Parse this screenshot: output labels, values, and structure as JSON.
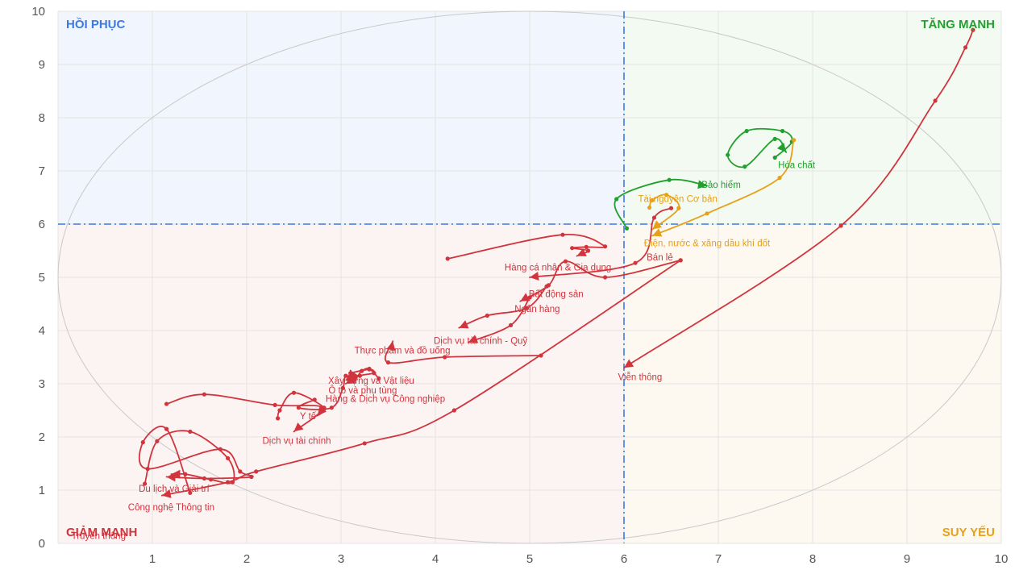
{
  "chart_data": {
    "type": "scatter",
    "title": "",
    "xlim": [
      0,
      10
    ],
    "ylim": [
      0,
      10
    ],
    "x_ticks": [
      "1",
      "2",
      "3",
      "4",
      "5",
      "6",
      "7",
      "8",
      "9",
      "10"
    ],
    "y_ticks": [
      "0",
      "1",
      "2",
      "3",
      "4",
      "5",
      "6",
      "7",
      "8",
      "9",
      "10"
    ],
    "divider_x": 6,
    "divider_y": 6,
    "grid": true,
    "quadrants": [
      {
        "label": "HỒI PHỤC",
        "color": "#3b7ae0",
        "bg": "#f1f5fd",
        "position": "top-left"
      },
      {
        "label": "TĂNG MẠNH",
        "color": "#22a02f",
        "bg": "#f3faf1",
        "position": "top-right"
      },
      {
        "label": "GIẢM MẠNH",
        "color": "#d1343d",
        "bg": "#fcf3f3",
        "position": "bottom-left"
      },
      {
        "label": "SUY YẾU",
        "color": "#e6a019",
        "bg": "#fdf9f1",
        "position": "bottom-right"
      }
    ],
    "series": [
      {
        "name": "Hóa chất",
        "color": "#22a02f",
        "label_at": [
          7.83,
          7.05
        ],
        "points": [
          [
            7.6,
            7.25
          ],
          [
            7.78,
            7.55
          ],
          [
            7.68,
            7.75
          ],
          [
            7.3,
            7.75
          ],
          [
            7.1,
            7.3
          ],
          [
            7.28,
            7.08
          ],
          [
            7.6,
            7.6
          ],
          [
            7.72,
            7.35
          ]
        ]
      },
      {
        "name": "Bảo hiểm",
        "color": "#22a02f",
        "label_at": [
          7.03,
          6.68
        ],
        "points": [
          [
            6.03,
            5.92
          ],
          [
            5.92,
            6.47
          ],
          [
            6.48,
            6.83
          ],
          [
            6.88,
            6.72
          ]
        ]
      },
      {
        "name": "Tài nguyên Cơ bản",
        "color": "#e6a019",
        "label_at": [
          6.57,
          6.42
        ],
        "points": [
          [
            7.8,
            7.58
          ],
          [
            7.65,
            6.87
          ],
          [
            6.88,
            6.2
          ],
          [
            6.3,
            5.78
          ]
        ]
      },
      {
        "name": "Điện, nước & xăng dầu khí đốt",
        "color": "#e6a019",
        "label_at": [
          6.88,
          5.58
        ],
        "points": [
          [
            6.27,
            6.31
          ],
          [
            6.3,
            6.45
          ],
          [
            6.45,
            6.55
          ],
          [
            6.58,
            6.3
          ],
          [
            6.3,
            5.9
          ]
        ]
      },
      {
        "name": "Bán lẻ",
        "color": "#d1343d",
        "label_at": [
          6.38,
          5.32
        ],
        "points": [
          [
            6.5,
            6.3
          ],
          [
            6.32,
            6.12
          ],
          [
            6.12,
            5.27
          ],
          [
            5.0,
            5.0
          ]
        ]
      },
      {
        "name": "Viễn thông",
        "color": "#d1343d",
        "label_at": [
          6.17,
          3.07
        ],
        "points": [
          [
            9.7,
            9.65
          ],
          [
            9.62,
            9.32
          ],
          [
            9.3,
            8.32
          ],
          [
            8.3,
            5.97
          ],
          [
            6.0,
            3.3
          ]
        ]
      },
      {
        "name": "Hàng cá nhân & Gia dụng",
        "color": "#d1343d",
        "label_at": [
          5.3,
          5.13
        ],
        "points": [
          [
            4.13,
            5.35
          ],
          [
            5.35,
            5.8
          ],
          [
            5.8,
            5.58
          ],
          [
            5.6,
            5.57
          ],
          [
            5.45,
            5.55
          ],
          [
            5.62,
            5.5
          ],
          [
            5.5,
            5.4
          ]
        ]
      },
      {
        "name": "Bất động sản",
        "color": "#d1343d",
        "label_at": [
          5.28,
          4.63
        ],
        "points": [
          [
            6.6,
            5.32
          ],
          [
            5.8,
            5.0
          ],
          [
            5.38,
            5.3
          ],
          [
            5.2,
            4.85
          ],
          [
            4.9,
            4.55
          ]
        ]
      },
      {
        "name": "Ngân hàng",
        "color": "#d1343d",
        "label_at": [
          5.08,
          4.35
        ],
        "points": [
          [
            5.18,
            4.83
          ],
          [
            4.97,
            4.42
          ],
          [
            4.55,
            4.28
          ],
          [
            4.25,
            4.05
          ]
        ]
      },
      {
        "name": "Dịch vụ tài chính - Quỹ",
        "color": "#d1343d",
        "label_at": [
          4.48,
          3.75
        ],
        "points": [
          [
            5.0,
            4.62
          ],
          [
            4.8,
            4.1
          ],
          [
            4.35,
            3.78
          ]
        ]
      },
      {
        "name": "Thực phẩm và đồ uống",
        "color": "#d1343d",
        "label_at": [
          3.65,
          3.57
        ],
        "points": [
          [
            5.12,
            3.53
          ],
          [
            4.1,
            3.5
          ],
          [
            3.5,
            3.4
          ],
          [
            3.55,
            3.8
          ]
        ]
      },
      {
        "name": "Xây dựng và Vật liệu",
        "color": "#d1343d",
        "label_at": [
          3.32,
          3.0
        ],
        "points": [
          [
            3.4,
            3.1
          ],
          [
            3.3,
            3.28
          ],
          [
            3.22,
            3.24
          ],
          [
            3.15,
            3.1
          ],
          [
            3.1,
            3.25
          ]
        ]
      },
      {
        "name": "Ô tô và phụ tùng",
        "color": "#d1343d",
        "label_at": [
          3.23,
          2.82
        ],
        "points": [
          [
            3.1,
            3.2
          ],
          [
            3.3,
            3.27
          ],
          [
            3.35,
            3.2
          ],
          [
            3.2,
            3.15
          ],
          [
            3.05,
            3.0
          ]
        ]
      },
      {
        "name": "Hàng & Dịch vụ Công nghiệp",
        "color": "#d1343d",
        "label_at": [
          3.47,
          2.66
        ],
        "points": [
          [
            2.72,
            2.7
          ],
          [
            2.55,
            2.55
          ],
          [
            2.9,
            2.55
          ],
          [
            3.02,
            2.92
          ],
          [
            3.05,
            3.15
          ],
          [
            3.15,
            3.05
          ]
        ]
      },
      {
        "name": "Y tế",
        "color": "#d1343d",
        "label_at": [
          2.65,
          2.33
        ],
        "points": [
          [
            2.33,
            2.35
          ],
          [
            2.35,
            2.5
          ],
          [
            2.5,
            2.83
          ],
          [
            2.82,
            2.55
          ],
          [
            2.75,
            2.4
          ]
        ]
      },
      {
        "name": "Dịch vụ tài chính",
        "color": "#d1343d",
        "label_at": [
          2.53,
          1.87
        ],
        "points": [
          [
            1.15,
            2.62
          ],
          [
            1.55,
            2.8
          ],
          [
            2.3,
            2.6
          ],
          [
            2.8,
            2.55
          ],
          [
            2.5,
            2.1
          ]
        ]
      },
      {
        "name": "Du lịch và Giải trí",
        "color": "#d1343d",
        "label_at": [
          1.23,
          0.97
        ],
        "points": [
          [
            0.92,
            1.12
          ],
          [
            1.05,
            1.92
          ],
          [
            1.4,
            2.1
          ],
          [
            1.8,
            1.6
          ],
          [
            1.85,
            1.15
          ],
          [
            1.62,
            1.2
          ],
          [
            1.35,
            1.3
          ],
          [
            1.2,
            1.3
          ]
        ]
      },
      {
        "name": "Công nghệ Thông tin",
        "color": "#d1343d",
        "label_at": [
          1.2,
          0.62
        ],
        "points": [
          [
            6.6,
            5.32
          ],
          [
            4.2,
            2.5
          ],
          [
            3.25,
            1.88
          ],
          [
            2.1,
            1.35
          ],
          [
            1.8,
            1.15
          ],
          [
            1.1,
            0.9
          ]
        ]
      },
      {
        "name": "Truyền thông",
        "color": "#d1343d",
        "label_at": [
          0.43,
          0.08
        ],
        "points": [
          [
            1.4,
            0.95
          ],
          [
            1.15,
            2.15
          ],
          [
            0.9,
            1.9
          ],
          [
            0.95,
            1.4
          ],
          [
            1.72,
            1.77
          ],
          [
            1.93,
            1.35
          ],
          [
            2.05,
            1.25
          ],
          [
            1.55,
            1.22
          ],
          [
            1.15,
            1.25
          ]
        ]
      }
    ]
  }
}
